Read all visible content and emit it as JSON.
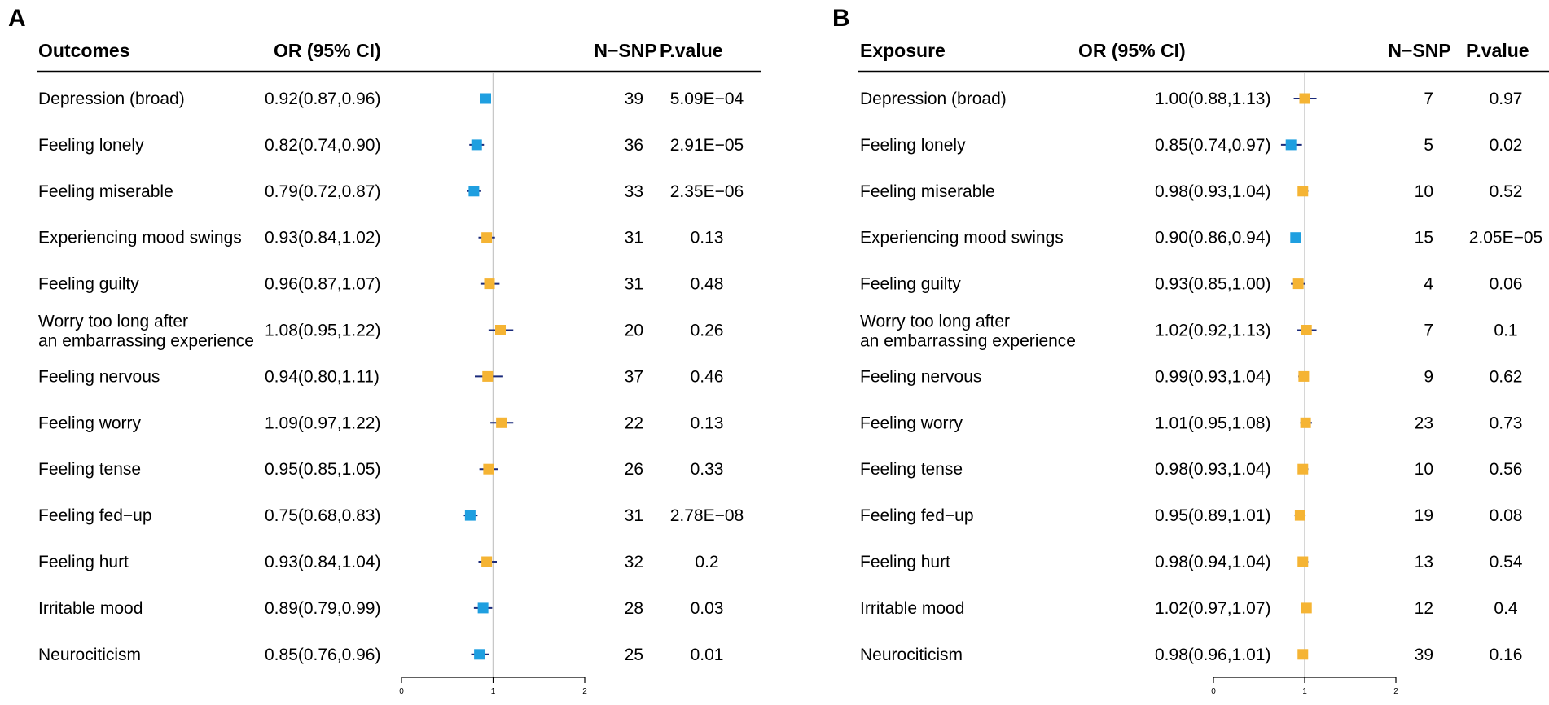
{
  "chart_data": [
    {
      "type": "forest",
      "panel": "A",
      "headers": {
        "label": "Outcomes",
        "or": "OR (95% CI)",
        "nsnp": "N−SNP",
        "p": "P.value"
      },
      "xlim": [
        0,
        2
      ],
      "xticks": [
        "0",
        "1",
        "2"
      ],
      "reference_line": 1,
      "colors": {
        "significant": "#1f9fe0",
        "nonsignificant": "#f5b434",
        "ci": "#1a2a7a"
      },
      "rows": [
        {
          "label": [
            "Depression (broad)"
          ],
          "or_text": "0.92(0.87,0.96)",
          "or": 0.92,
          "lo": 0.87,
          "hi": 0.96,
          "nsnp": "39",
          "p": "5.09E−04",
          "significant": true
        },
        {
          "label": [
            "Feeling lonely"
          ],
          "or_text": "0.82(0.74,0.90)",
          "or": 0.82,
          "lo": 0.74,
          "hi": 0.9,
          "nsnp": "36",
          "p": "2.91E−05",
          "significant": true
        },
        {
          "label": [
            "Feeling miserable"
          ],
          "or_text": "0.79(0.72,0.87)",
          "or": 0.79,
          "lo": 0.72,
          "hi": 0.87,
          "nsnp": "33",
          "p": "2.35E−06",
          "significant": true
        },
        {
          "label": [
            "Experiencing mood swings"
          ],
          "or_text": "0.93(0.84,1.02)",
          "or": 0.93,
          "lo": 0.84,
          "hi": 1.02,
          "nsnp": "31",
          "p": "0.13",
          "significant": false
        },
        {
          "label": [
            "Feeling guilty"
          ],
          "or_text": "0.96(0.87,1.07)",
          "or": 0.96,
          "lo": 0.87,
          "hi": 1.07,
          "nsnp": "31",
          "p": "0.48",
          "significant": false
        },
        {
          "label": [
            "Worry too long after",
            "an embarrassing experience"
          ],
          "or_text": "1.08(0.95,1.22)",
          "or": 1.08,
          "lo": 0.95,
          "hi": 1.22,
          "nsnp": "20",
          "p": "0.26",
          "significant": false
        },
        {
          "label": [
            "Feeling nervous"
          ],
          "or_text": "0.94(0.80,1.11)",
          "or": 0.94,
          "lo": 0.8,
          "hi": 1.11,
          "nsnp": "37",
          "p": "0.46",
          "significant": false
        },
        {
          "label": [
            "Feeling worry"
          ],
          "or_text": "1.09(0.97,1.22)",
          "or": 1.09,
          "lo": 0.97,
          "hi": 1.22,
          "nsnp": "22",
          "p": "0.13",
          "significant": false
        },
        {
          "label": [
            "Feeling tense"
          ],
          "or_text": "0.95(0.85,1.05)",
          "or": 0.95,
          "lo": 0.85,
          "hi": 1.05,
          "nsnp": "26",
          "p": "0.33",
          "significant": false
        },
        {
          "label": [
            "Feeling fed−up"
          ],
          "or_text": "0.75(0.68,0.83)",
          "or": 0.75,
          "lo": 0.68,
          "hi": 0.83,
          "nsnp": "31",
          "p": "2.78E−08",
          "significant": true
        },
        {
          "label": [
            "Feeling hurt"
          ],
          "or_text": "0.93(0.84,1.04)",
          "or": 0.93,
          "lo": 0.84,
          "hi": 1.04,
          "nsnp": "32",
          "p": "0.2",
          "significant": false
        },
        {
          "label": [
            "Irritable mood"
          ],
          "or_text": "0.89(0.79,0.99)",
          "or": 0.89,
          "lo": 0.79,
          "hi": 0.99,
          "nsnp": "28",
          "p": "0.03",
          "significant": true
        },
        {
          "label": [
            "Neurociticism"
          ],
          "or_text": "0.85(0.76,0.96)",
          "or": 0.85,
          "lo": 0.76,
          "hi": 0.96,
          "nsnp": "25",
          "p": "0.01",
          "significant": true
        }
      ]
    },
    {
      "type": "forest",
      "panel": "B",
      "headers": {
        "label": "Exposure",
        "or": "OR (95% CI)",
        "nsnp": "N−SNP",
        "p": "P.value"
      },
      "xlim": [
        0,
        2
      ],
      "xticks": [
        "0",
        "1",
        "2"
      ],
      "reference_line": 1,
      "colors": {
        "significant": "#1f9fe0",
        "nonsignificant": "#f5b434",
        "ci": "#1a2a7a"
      },
      "rows": [
        {
          "label": [
            "Depression (broad)"
          ],
          "or_text": "1.00(0.88,1.13)",
          "or": 1.0,
          "lo": 0.88,
          "hi": 1.13,
          "nsnp": "7",
          "p": "0.97",
          "significant": false
        },
        {
          "label": [
            "Feeling lonely"
          ],
          "or_text": "0.85(0.74,0.97)",
          "or": 0.85,
          "lo": 0.74,
          "hi": 0.97,
          "nsnp": "5",
          "p": "0.02",
          "significant": true
        },
        {
          "label": [
            "Feeling miserable"
          ],
          "or_text": "0.98(0.93,1.04)",
          "or": 0.98,
          "lo": 0.93,
          "hi": 1.04,
          "nsnp": "10",
          "p": "0.52",
          "significant": false
        },
        {
          "label": [
            "Experiencing mood swings"
          ],
          "or_text": "0.90(0.86,0.94)",
          "or": 0.9,
          "lo": 0.86,
          "hi": 0.94,
          "nsnp": "15",
          "p": "2.05E−05",
          "significant": true
        },
        {
          "label": [
            "Feeling guilty"
          ],
          "or_text": "0.93(0.85,1.00)",
          "or": 0.93,
          "lo": 0.85,
          "hi": 1.0,
          "nsnp": "4",
          "p": "0.06",
          "significant": false
        },
        {
          "label": [
            "Worry too long after",
            "an embarrassing experience"
          ],
          "or_text": "1.02(0.92,1.13)",
          "or": 1.02,
          "lo": 0.92,
          "hi": 1.13,
          "nsnp": "7",
          "p": "0.1",
          "significant": false
        },
        {
          "label": [
            "Feeling nervous"
          ],
          "or_text": "0.99(0.93,1.04)",
          "or": 0.99,
          "lo": 0.93,
          "hi": 1.04,
          "nsnp": "9",
          "p": "0.62",
          "significant": false
        },
        {
          "label": [
            "Feeling worry"
          ],
          "or_text": "1.01(0.95,1.08)",
          "or": 1.01,
          "lo": 0.95,
          "hi": 1.08,
          "nsnp": "23",
          "p": "0.73",
          "significant": false
        },
        {
          "label": [
            "Feeling tense"
          ],
          "or_text": "0.98(0.93,1.04)",
          "or": 0.98,
          "lo": 0.93,
          "hi": 1.04,
          "nsnp": "10",
          "p": "0.56",
          "significant": false
        },
        {
          "label": [
            "Feeling fed−up"
          ],
          "or_text": "0.95(0.89,1.01)",
          "or": 0.95,
          "lo": 0.89,
          "hi": 1.01,
          "nsnp": "19",
          "p": "0.08",
          "significant": false
        },
        {
          "label": [
            "Feeling hurt"
          ],
          "or_text": "0.98(0.94,1.04)",
          "or": 0.98,
          "lo": 0.94,
          "hi": 1.04,
          "nsnp": "13",
          "p": "0.54",
          "significant": false
        },
        {
          "label": [
            "Irritable mood"
          ],
          "or_text": "1.02(0.97,1.07)",
          "or": 1.02,
          "lo": 0.97,
          "hi": 1.07,
          "nsnp": "12",
          "p": "0.4",
          "significant": false
        },
        {
          "label": [
            "Neurociticism"
          ],
          "or_text": "0.98(0.96,1.01)",
          "or": 0.98,
          "lo": 0.96,
          "hi": 1.01,
          "nsnp": "39",
          "p": "0.16",
          "significant": false
        }
      ]
    }
  ]
}
